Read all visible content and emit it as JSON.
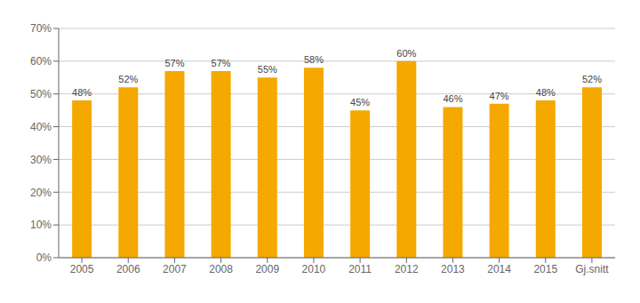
{
  "chart_data": {
    "type": "bar",
    "categories": [
      "2005",
      "2006",
      "2007",
      "2008",
      "2009",
      "2010",
      "2011",
      "2012",
      "2013",
      "2014",
      "2015",
      "Gj.snitt"
    ],
    "values": [
      0.48,
      0.52,
      0.57,
      0.57,
      0.55,
      0.58,
      0.45,
      0.6,
      0.46,
      0.47,
      0.48,
      0.52
    ],
    "value_labels": [
      "48%",
      "52%",
      "57%",
      "57%",
      "55%",
      "58%",
      "45%",
      "60%",
      "46%",
      "47%",
      "48%",
      "52%"
    ],
    "data_labels": true,
    "color": "#F5A800",
    "ylim": [
      0.0,
      0.7
    ],
    "yticks": [
      {
        "value": 0.0,
        "label": "0%"
      },
      {
        "value": 0.1,
        "label": "10%"
      },
      {
        "value": 0.2,
        "label": "20%"
      },
      {
        "value": 0.3,
        "label": "30%"
      },
      {
        "value": 0.4,
        "label": "40%"
      },
      {
        "value": 0.5,
        "label": "50%"
      },
      {
        "value": 0.6,
        "label": "60%"
      },
      {
        "value": 0.7,
        "label": "70%"
      }
    ],
    "grid": true
  }
}
